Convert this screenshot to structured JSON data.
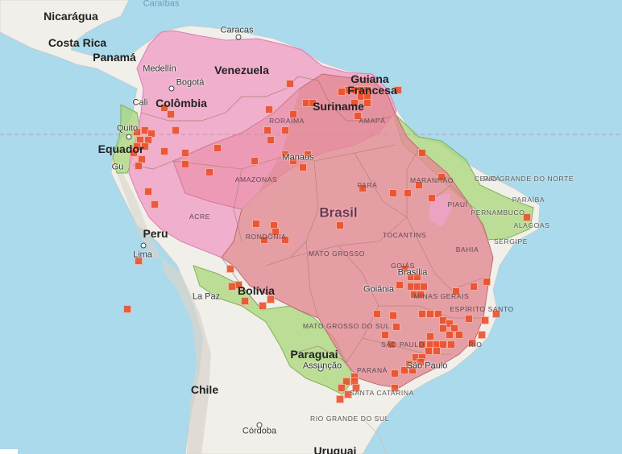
{
  "map": {
    "colors": {
      "sea": "#aadaec",
      "land": "#f1efe9",
      "range_pink": "#f0a3c8",
      "range_red": "#e48a94",
      "range_green": "#a9d77a",
      "observation": "#ec4a23"
    },
    "sea_labels": {
      "caribbean": "Caraíbas"
    },
    "countries": {
      "nicaragua": "Nicarágua",
      "costa_rica": "Costa Rica",
      "panama": "Panamá",
      "venezuela": "Venezuela",
      "colombia": "Colômbia",
      "guiana": "Guiana",
      "guiana_francesa": "Francesa",
      "suriname": "Suriname",
      "equador": "Equador",
      "peru": "Peru",
      "brasil": "Brasil",
      "bolivia": "Bolívia",
      "paraguai": "Paraguai",
      "chile": "Chile",
      "uruguai": "Uruguai"
    },
    "cities": {
      "caracas": "Caracas",
      "medellin": "Medellín",
      "bogota": "Bogotá",
      "cali": "Cali",
      "quito": "Quito",
      "guayaquil": "Gu",
      "manaus": "Manaus",
      "lima": "Lima",
      "la_paz": "La Paz",
      "brasilia": "Brasília",
      "goiania": "Goiânia",
      "sao_paulo": "São Paulo",
      "assuncao": "Assunção",
      "cordoba": "Córdoba",
      "rio": "RIO"
    },
    "states": {
      "amazonas": "AMAZONAS",
      "roraima": "RORAIMA",
      "amapa": "AMAPÁ",
      "para": "PARÁ",
      "maranhao": "MARANHÃO",
      "piaui": "PIAUÍ",
      "ceara": "CEARÁ",
      "rio_grande_do_norte": "RIO GRANDE DO NORTE",
      "paraiba": "PARAÍBA",
      "pernambuco": "PERNAMBUCO",
      "alagoas": "ALAGOAS",
      "sergipe": "SERGIPE",
      "bahia": "BAHIA",
      "acre": "ACRE",
      "rondonia": "RONDÔNIA",
      "mato_grosso": "MATO GROSSO",
      "tocantins": "TOCANTINS",
      "goias": "GOIÁS",
      "minas_gerais": "MINAS GERAIS",
      "espirito_santo": "ESPÍRITO SANTO",
      "mato_grosso_do_sul": "MATO GROSSO DO SUL",
      "sao_paulo_state": "SÃO PAULO",
      "parana": "PARANÁ",
      "santa_catarina": "SANTA CATARINA",
      "rio_grande_do_sul": "RIO GRANDE DO SUL"
    }
  }
}
